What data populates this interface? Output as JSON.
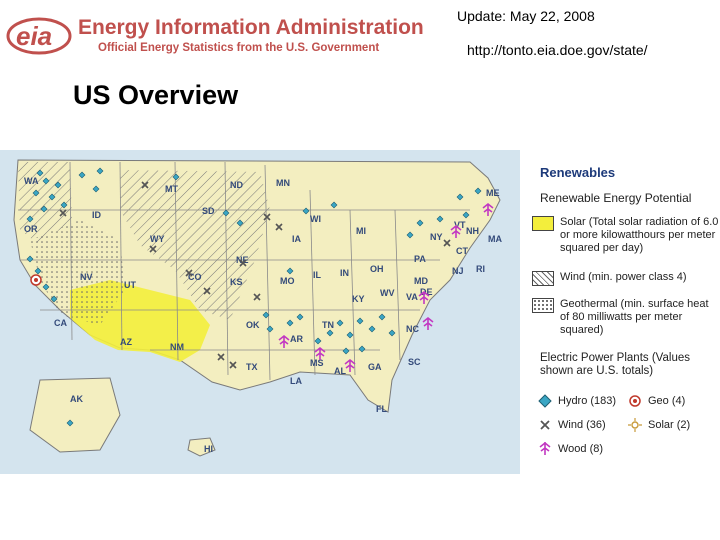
{
  "header": {
    "agency_name": "Energy Information Administration",
    "agency_tagline": "Official Energy Statistics from the U.S. Government",
    "logo_text": "eia",
    "update": "Update: May 22, 2008",
    "url": "http://tonto.eia.doe.gov/state/"
  },
  "page_title": "US Overview",
  "legend": {
    "heading": "Renewables",
    "subheading": "Renewable Energy Potential",
    "potential": [
      {
        "label": "Solar (Total solar radiation of 6.0 or more kilowatthours per meter squared per day)",
        "color": "#f3ee3c",
        "pattern": "solid"
      },
      {
        "label": "Wind (min. power class 4)",
        "color": "#ffffff",
        "pattern": "hatch"
      },
      {
        "label": "Geothermal (min. surface heat of 80 milliwatts per meter squared)",
        "color": "#ffffff",
        "pattern": "dots"
      }
    ],
    "plants_heading": "Electric Power Plants (Values shown are U.S. totals)",
    "plants": [
      {
        "label": "Hydro (183)",
        "icon": "diamond-icon",
        "color": "#3aa6c4"
      },
      {
        "label": "Geo (4)",
        "icon": "geo-target-icon",
        "color": "#c0392b"
      },
      {
        "label": "Wind (36)",
        "icon": "x-icon",
        "color": "#555555"
      },
      {
        "label": "Solar (2)",
        "icon": "sun-icon",
        "color": "#c89a3a"
      },
      {
        "label": "Wood (8)",
        "icon": "tree-icon",
        "color": "#c238c2"
      }
    ]
  },
  "states": [
    "WA",
    "OR",
    "CA",
    "ID",
    "NV",
    "UT",
    "AZ",
    "MT",
    "WY",
    "CO",
    "NM",
    "ND",
    "SD",
    "NE",
    "KS",
    "OK",
    "TX",
    "MN",
    "IA",
    "MO",
    "AR",
    "LA",
    "WI",
    "IL",
    "MI",
    "IN",
    "OH",
    "KY",
    "TN",
    "MS",
    "AL",
    "GA",
    "FL",
    "SC",
    "NC",
    "VA",
    "WV",
    "PA",
    "NY",
    "MD",
    "DE",
    "NJ",
    "CT",
    "RI",
    "MA",
    "VT",
    "NH",
    "ME",
    "AK",
    "HI"
  ]
}
